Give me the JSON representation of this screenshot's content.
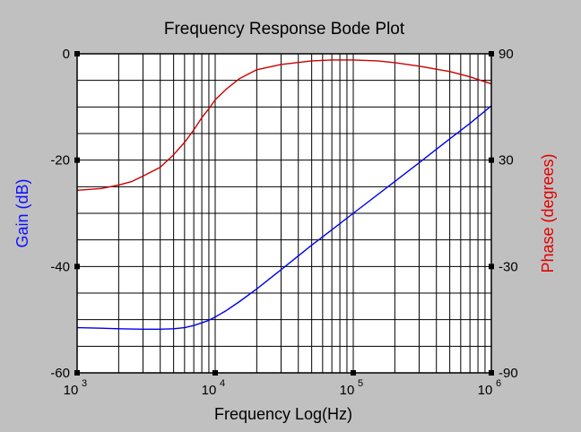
{
  "chart_data": {
    "type": "line",
    "title": "Frequency Response Bode Plot",
    "xlabel": "Frequency Log(Hz)",
    "ylabel": "Gain (dB)",
    "ylabel_right": "Phase (degrees)",
    "x_scale": "log",
    "x_base": "10",
    "x_tick_exponents": [
      "3",
      "4",
      "5",
      "6"
    ],
    "xlim": [
      1000,
      1000000
    ],
    "ylim": [
      -60,
      0
    ],
    "y_ticks": [
      "0",
      "-20",
      "-40",
      "-60"
    ],
    "y2lim": [
      -90,
      90
    ],
    "y2_ticks": [
      "90",
      "30",
      "-30",
      "-90"
    ],
    "grid": true,
    "series": [
      {
        "axis": "left",
        "color": "#0000ee",
        "x": [
          1000,
          1500,
          2000,
          3000,
          4000,
          5000,
          6000,
          7000,
          8000,
          9000,
          10000,
          12000,
          15000,
          20000,
          30000,
          50000,
          70000,
          100000,
          200000,
          300000,
          500000,
          700000,
          1000000
        ],
        "values": [
          -51.5,
          -51.6,
          -51.7,
          -51.8,
          -51.8,
          -51.7,
          -51.5,
          -51.1,
          -50.6,
          -50.1,
          -49.5,
          -48.3,
          -46.6,
          -44.2,
          -40.6,
          -36.0,
          -33.1,
          -30.0,
          -24.0,
          -20.5,
          -16.0,
          -13.1,
          -9.8
        ]
      },
      {
        "axis": "right",
        "color": "#cc0000",
        "x": [
          1000,
          1500,
          2000,
          2500,
          3000,
          4000,
          5000,
          6000,
          7000,
          8000,
          9000,
          10000,
          12000,
          15000,
          20000,
          30000,
          50000,
          70000,
          100000,
          150000,
          200000,
          300000,
          500000,
          700000,
          1000000
        ],
        "values": [
          13,
          14,
          16,
          18,
          21,
          26,
          33,
          40,
          47,
          54,
          59,
          64,
          70,
          76,
          81,
          84,
          86,
          86.5,
          86.5,
          86,
          85,
          83,
          80,
          77,
          73
        ]
      }
    ]
  }
}
